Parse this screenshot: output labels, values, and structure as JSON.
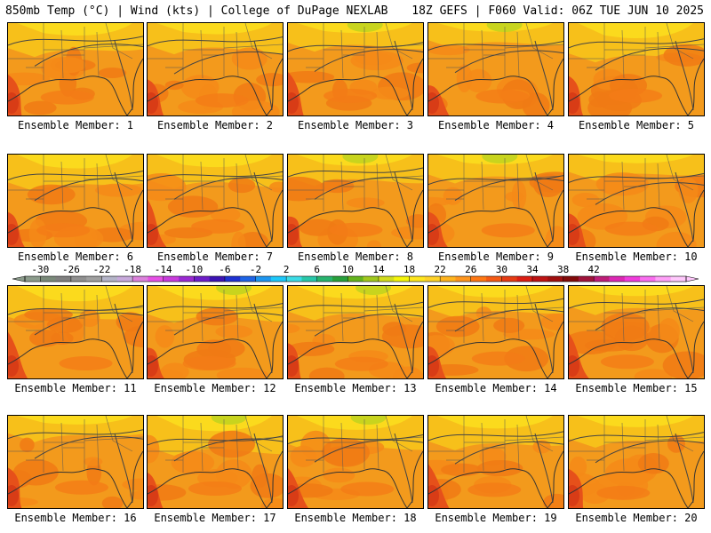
{
  "header": {
    "left": "850mb Temp (°C) | Wind (kts) | College of DuPage NEXLAB",
    "right": "18Z GEFS | F060 Valid: 06Z TUE JUN 10 2025"
  },
  "panels": [
    {
      "label": "Ensemble Member: 1"
    },
    {
      "label": "Ensemble Member: 2"
    },
    {
      "label": "Ensemble Member: 3"
    },
    {
      "label": "Ensemble Member: 4"
    },
    {
      "label": "Ensemble Member: 5"
    },
    {
      "label": "Ensemble Member: 6"
    },
    {
      "label": "Ensemble Member: 7"
    },
    {
      "label": "Ensemble Member: 8"
    },
    {
      "label": "Ensemble Member: 9"
    },
    {
      "label": "Ensemble Member: 10"
    },
    {
      "label": "Ensemble Member: 11"
    },
    {
      "label": "Ensemble Member: 12"
    },
    {
      "label": "Ensemble Member: 13"
    },
    {
      "label": "Ensemble Member: 14"
    },
    {
      "label": "Ensemble Member: 15"
    },
    {
      "label": "Ensemble Member: 16"
    },
    {
      "label": "Ensemble Member: 17"
    },
    {
      "label": "Ensemble Member: 18"
    },
    {
      "label": "Ensemble Member: 19"
    },
    {
      "label": "Ensemble Member: 20"
    }
  ],
  "colorbar": {
    "tick_labels": [
      "-30",
      "-26",
      "-22",
      "-18",
      "-14",
      "-10",
      "-6",
      "-2",
      "2",
      "6",
      "10",
      "14",
      "18",
      "22",
      "26",
      "30",
      "34",
      "38",
      "42"
    ],
    "colors": [
      "#8c9c8c",
      "#7a8a7a",
      "#808080",
      "#909090",
      "#a0a0a0",
      "#b4b4c8",
      "#c8aadc",
      "#dc82dc",
      "#e650e6",
      "#c83cdc",
      "#9a2ad2",
      "#6e1ec8",
      "#3c14b4",
      "#1e32d2",
      "#1e64e6",
      "#1e96f0",
      "#1ec8fa",
      "#3cdce6",
      "#28c8aa",
      "#28b46e",
      "#28a03c",
      "#64b41e",
      "#a0c81e",
      "#d2dc1e",
      "#f5f50a",
      "#ffe61e",
      "#ffd228",
      "#ffb41e",
      "#ff961e",
      "#ff7814",
      "#f55a14",
      "#e63c14",
      "#dc1e14",
      "#be1414",
      "#a00f0f",
      "#820a0a",
      "#a0143c",
      "#be1e78",
      "#dc28b4",
      "#f03cdc",
      "#fa6ef0",
      "#ffa0f8",
      "#ffc8fc"
    ]
  }
}
